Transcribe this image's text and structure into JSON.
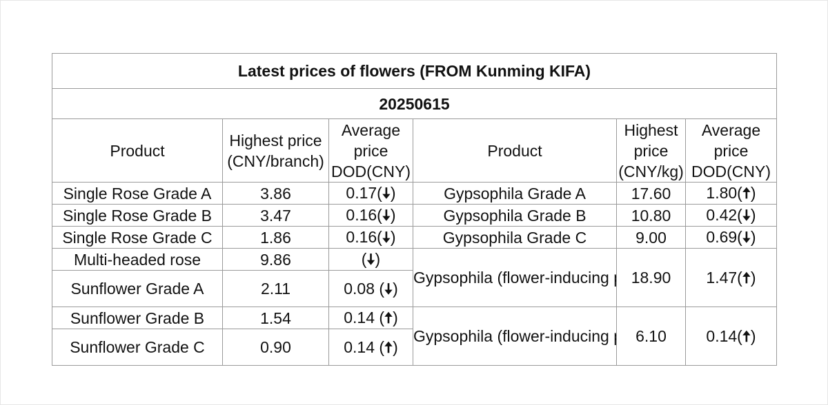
{
  "title": "Latest prices of flowers (FROM Kunming KIFA)",
  "date": "20250615",
  "headers": {
    "product_left": "Product",
    "highest_left": "Highest price (CNY/branch)",
    "average_left": "Average price DOD(CNY)",
    "product_right": "Product",
    "highest_right": "Highest price (CNY/kg)",
    "average_right": "Average price DOD(CNY)"
  },
  "left_rows": [
    {
      "product": "Single Rose Grade A",
      "highest": "3.86",
      "avg": "0.17(",
      "dir": "down",
      "close": ")"
    },
    {
      "product": "Single Rose Grade B",
      "highest": "3.47",
      "avg": "0.16(",
      "dir": "down",
      "close": ")"
    },
    {
      "product": "Single Rose Grade C",
      "highest": "1.86",
      "avg": "0.16(",
      "dir": "down",
      "close": ")"
    },
    {
      "product": "Multi-headed rose",
      "highest": "9.86",
      "avg": "(",
      "dir": "down",
      "close": ")"
    },
    {
      "product": "Sunflower Grade A",
      "highest": "2.11",
      "avg": "0.08 (",
      "dir": "down",
      "close": ")"
    },
    {
      "product": "Sunflower Grade B",
      "highest": "1.54",
      "avg": "0.14 (",
      "dir": "up",
      "close": ")"
    },
    {
      "product": "Sunflower Grade C",
      "highest": "0.90",
      "avg": "0.14 (",
      "dir": "up",
      "close": ")"
    }
  ],
  "right_rows": [
    {
      "product": "Gypsophila Grade A",
      "highest": "17.60",
      "avg": "1.80(",
      "dir": "up",
      "close": ")"
    },
    {
      "product": "Gypsophila Grade B",
      "highest": "10.80",
      "avg": "0.42(",
      "dir": "down",
      "close": ")"
    },
    {
      "product": "Gypsophila Grade C",
      "highest": "9.00",
      "avg": "0.69(",
      "dir": "down",
      "close": ")"
    },
    {
      "product": "Gypsophila (flower-inducing product) Grade A",
      "highest": "18.90",
      "avg": "1.47(",
      "dir": "up",
      "close": ")"
    },
    {
      "product": "Gypsophila (flower-inducing product) Grade B",
      "highest": "6.10",
      "avg": "0.14(",
      "dir": "up",
      "close": ")"
    }
  ],
  "arrows": {
    "up": "🠅",
    "down": "🠇"
  }
}
